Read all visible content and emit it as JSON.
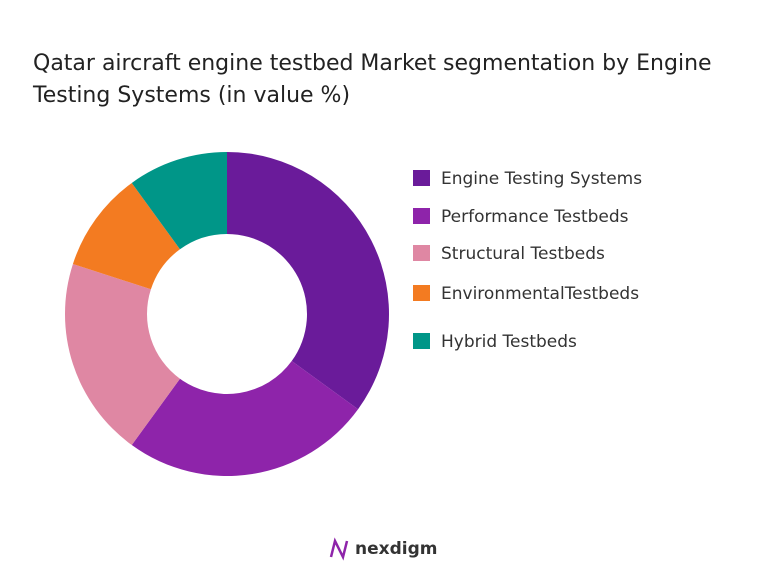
{
  "chart_data": {
    "type": "donut",
    "title": "Qatar aircraft engine testbed Market segmentation by Engine Testing Systems (in value %)",
    "categories": [
      "Engine Testing Systems",
      "Performance Testbeds",
      "Structural Testbeds",
      "EnvironmentalTestbeds",
      "Hybrid Testbeds"
    ],
    "values": [
      35,
      25,
      20,
      10,
      10
    ],
    "colors": [
      "#6a1b9a",
      "#8e24aa",
      "#df87a3",
      "#f37b21",
      "#009688"
    ],
    "legend": "right"
  },
  "footer": {
    "brand": "nexdigm"
  }
}
